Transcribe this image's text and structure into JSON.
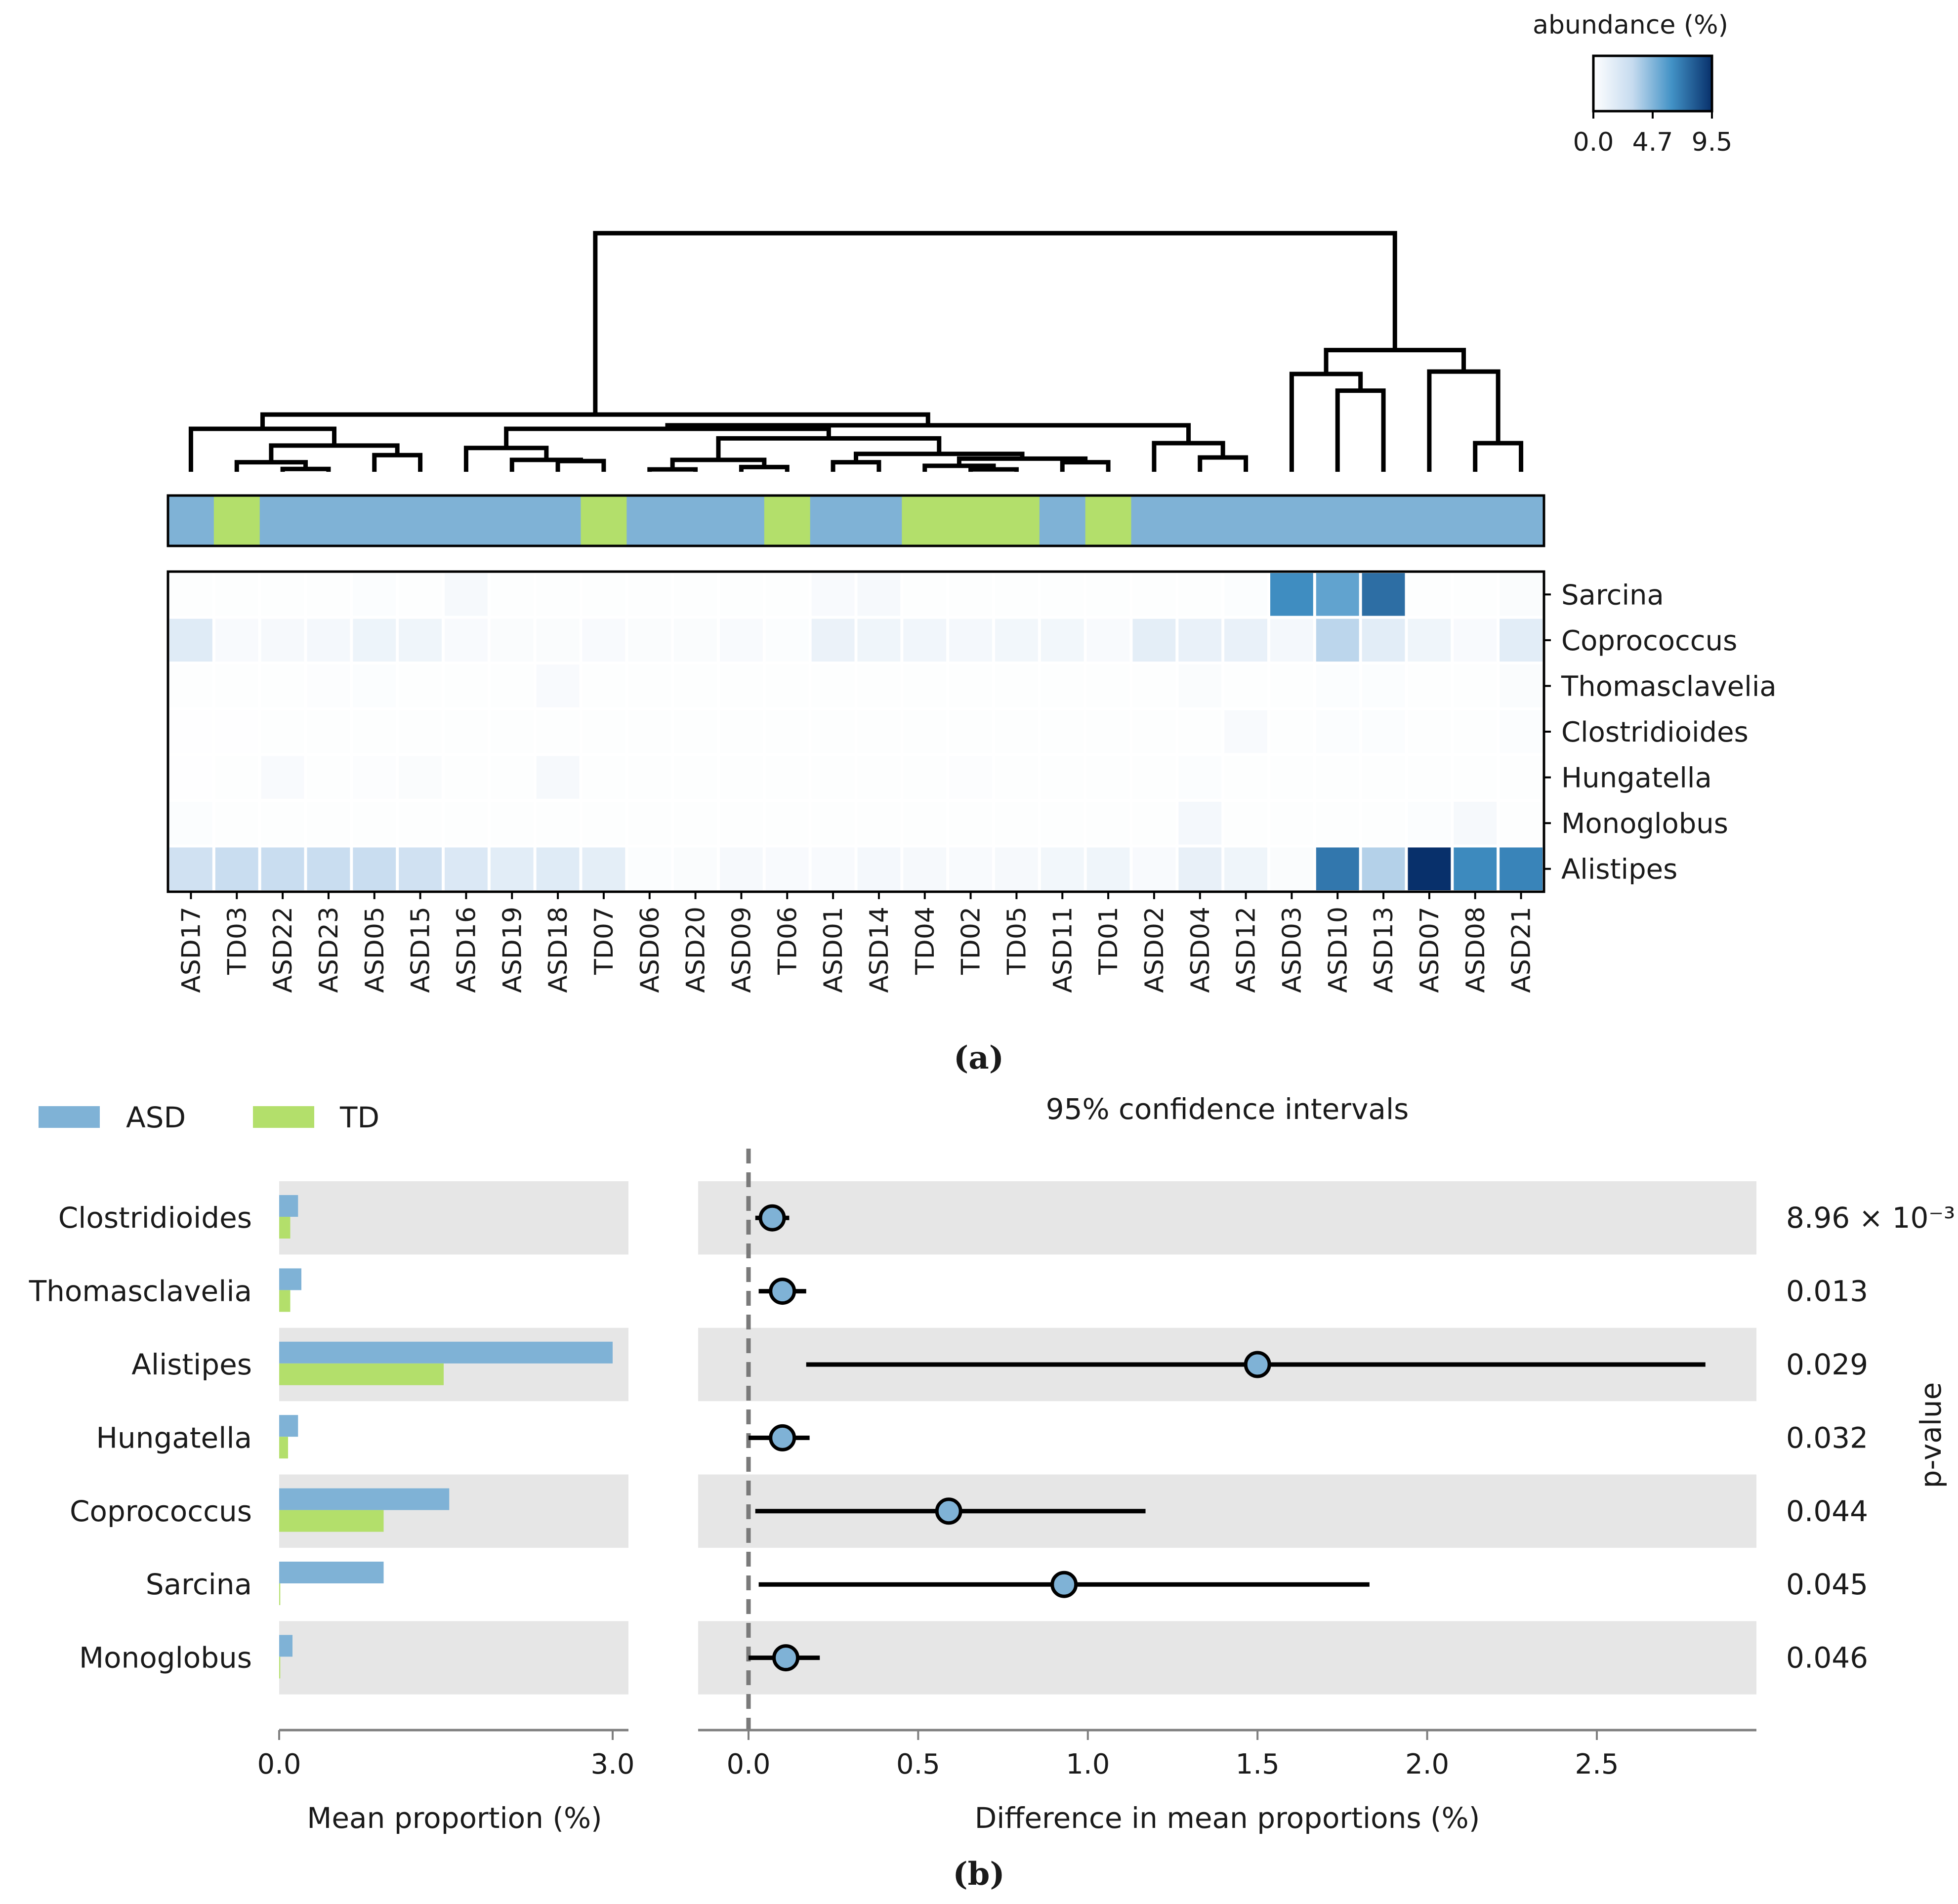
{
  "colorbar": {
    "title": "abundance (%)",
    "ticks": [
      "0.0",
      "4.7",
      "9.5"
    ],
    "min": 0,
    "max": 9.5,
    "colors": [
      "#ffffff",
      "#c6dbef",
      "#4292c6",
      "#08306b"
    ]
  },
  "colors": {
    "asd": "#7fb2d6",
    "td": "#b3df6b",
    "band": "#e6e6e6",
    "line": "#000000",
    "dashed": "#7a7a7a",
    "axis": "#7f7f7f"
  },
  "panel_a_label": "(a)",
  "panel_b_label": "(b)",
  "chart_data": [
    {
      "type": "heatmap",
      "samples": [
        "ASD17",
        "TD03",
        "ASD22",
        "ASD23",
        "ASD05",
        "ASD15",
        "ASD16",
        "ASD19",
        "ASD18",
        "TD07",
        "ASD06",
        "ASD20",
        "ASD09",
        "TD06",
        "ASD01",
        "ASD14",
        "TD04",
        "TD02",
        "TD05",
        "ASD11",
        "TD01",
        "ASD02",
        "ASD04",
        "ASD12",
        "ASD03",
        "ASD10",
        "ASD13",
        "ASD07",
        "ASD08",
        "ASD21"
      ],
      "sample_groups": [
        "ASD",
        "TD",
        "ASD",
        "ASD",
        "ASD",
        "ASD",
        "ASD",
        "ASD",
        "ASD",
        "TD",
        "ASD",
        "ASD",
        "ASD",
        "TD",
        "ASD",
        "ASD",
        "TD",
        "TD",
        "TD",
        "ASD",
        "TD",
        "ASD",
        "ASD",
        "ASD",
        "ASD",
        "ASD",
        "ASD",
        "ASD",
        "ASD",
        "ASD"
      ],
      "genera": [
        "Sarcina",
        "Coprococcus",
        "Thomasclavelia",
        "Clostridioides",
        "Hungatella",
        "Monoglobus",
        "Alistipes"
      ],
      "values": [
        [
          0.1,
          0.1,
          0.1,
          0.1,
          0.2,
          0.1,
          0.5,
          0.1,
          0.1,
          0.1,
          0.1,
          0.1,
          0.1,
          0.1,
          0.4,
          0.5,
          0.1,
          0.1,
          0.1,
          0.1,
          0.1,
          0.1,
          0.1,
          0.2,
          6.5,
          5.6,
          7.5,
          0.1,
          0.1,
          0.3
        ],
        [
          1.8,
          0.4,
          0.5,
          0.6,
          1.0,
          0.9,
          0.4,
          0.3,
          0.3,
          0.4,
          0.3,
          0.3,
          0.4,
          0.2,
          1.1,
          0.9,
          0.8,
          0.6,
          0.7,
          0.7,
          0.4,
          1.5,
          1.2,
          1.2,
          0.6,
          3.4,
          1.6,
          0.9,
          0.4,
          1.6
        ],
        [
          0.1,
          0.1,
          0.1,
          0.15,
          0.2,
          0.1,
          0.1,
          0.1,
          0.4,
          0.1,
          0.1,
          0.1,
          0.1,
          0.1,
          0.1,
          0.1,
          0.1,
          0.1,
          0.1,
          0.1,
          0.1,
          0.1,
          0.3,
          0.1,
          0.1,
          0.2,
          0.2,
          0.1,
          0.1,
          0.3
        ],
        [
          0.05,
          0.05,
          0.1,
          0.1,
          0.1,
          0.1,
          0.1,
          0.1,
          0.1,
          0.1,
          0.1,
          0.1,
          0.1,
          0.1,
          0.1,
          0.1,
          0.1,
          0.1,
          0.1,
          0.1,
          0.1,
          0.1,
          0.1,
          0.4,
          0.1,
          0.2,
          0.2,
          0.1,
          0.1,
          0.2
        ],
        [
          0.05,
          0.1,
          0.4,
          0.1,
          0.15,
          0.3,
          0.1,
          0.1,
          0.5,
          0.1,
          0.1,
          0.1,
          0.1,
          0.1,
          0.1,
          0.1,
          0.1,
          0.15,
          0.1,
          0.1,
          0.1,
          0.1,
          0.2,
          0.1,
          0.1,
          0.1,
          0.1,
          0.1,
          0.1,
          0.1
        ],
        [
          0.2,
          0.1,
          0.1,
          0.1,
          0.1,
          0.1,
          0.1,
          0.1,
          0.1,
          0.1,
          0.1,
          0.1,
          0.1,
          0.1,
          0.1,
          0.1,
          0.1,
          0.1,
          0.1,
          0.1,
          0.1,
          0.1,
          0.6,
          0.1,
          0.1,
          0.1,
          0.1,
          0.2,
          0.5,
          0.1
        ],
        [
          2.6,
          3.0,
          3.0,
          3.0,
          3.0,
          2.6,
          2.0,
          1.6,
          1.8,
          1.5,
          0.2,
          0.3,
          0.5,
          0.4,
          0.4,
          0.6,
          0.5,
          0.4,
          0.5,
          0.7,
          0.9,
          0.4,
          1.3,
          0.9,
          0.3,
          7.2,
          3.6,
          9.5,
          6.6,
          6.8
        ]
      ]
    },
    {
      "type": "bar",
      "xlabel": "Mean proportion (%)",
      "xticks": [
        "0.0",
        "3.0"
      ],
      "xlim": [
        0,
        3.15
      ],
      "categories": [
        "Clostridioides",
        "Thomasclavelia",
        "Alistipes",
        "Hungatella",
        "Coprococcus",
        "Sarcina",
        "Monoglobus"
      ],
      "series": [
        {
          "name": "ASD",
          "values": [
            0.17,
            0.2,
            3.0,
            0.17,
            1.53,
            0.94,
            0.12
          ]
        },
        {
          "name": "TD",
          "values": [
            0.1,
            0.1,
            1.48,
            0.08,
            0.94,
            0.01,
            0.01
          ]
        }
      ]
    },
    {
      "type": "scatter",
      "title": "95% confidence intervals",
      "xlabel": "Difference in mean proportions (%)",
      "ylabel": "p-value",
      "xticks": [
        "0.0",
        "0.5",
        "1.0",
        "1.5",
        "2.0",
        "2.5"
      ],
      "xlim": [
        -0.14,
        2.97
      ],
      "categories": [
        "Clostridioides",
        "Thomasclavelia",
        "Alistipes",
        "Hungatella",
        "Coprococcus",
        "Sarcina",
        "Monoglobus"
      ],
      "difference": [
        0.07,
        0.1,
        1.5,
        0.1,
        0.59,
        0.93,
        0.11
      ],
      "ci_low": [
        0.02,
        0.03,
        0.17,
        0.0,
        0.02,
        0.03,
        0.0
      ],
      "ci_high": [
        0.12,
        0.17,
        2.82,
        0.18,
        1.17,
        1.83,
        0.21
      ],
      "p_values": [
        "8.96 × 10⁻³",
        "0.013",
        "0.029",
        "0.032",
        "0.044",
        "0.045",
        "0.046"
      ]
    }
  ]
}
